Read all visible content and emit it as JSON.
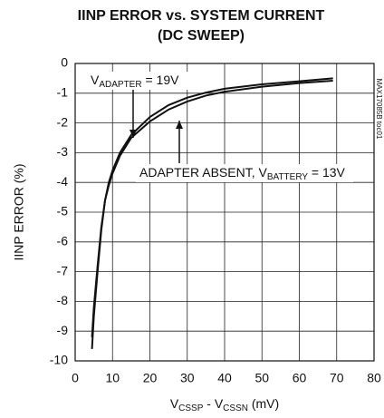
{
  "chart_data": {
    "type": "line",
    "title": "IINP ERROR vs. SYSTEM CURRENT",
    "subtitle": "(DC SWEEP)",
    "y_label": "IINP ERROR (%)",
    "x_label_parts": [
      "V",
      "CSSP",
      " - V",
      "CSSN",
      " (mV)"
    ],
    "figure_code": "MAX17085B toc01",
    "annotations": [
      {
        "parts": [
          "V",
          "ADAPTER",
          " = 19V"
        ]
      },
      {
        "parts": [
          "ADAPTER ABSENT, V",
          "BATTERY",
          " = 13V"
        ]
      }
    ],
    "x": [
      4.5,
      5,
      6,
      7,
      8,
      9,
      10,
      12,
      15,
      20,
      25,
      30,
      35,
      40,
      50,
      60,
      69
    ],
    "series": [
      {
        "color": "#111111",
        "values": [
          -9.6,
          -8.5,
          -7,
          -5.6,
          -4.6,
          -4.0,
          -3.6,
          -3.0,
          -2.4,
          -1.8,
          -1.4,
          -1.15,
          -0.98,
          -0.85,
          -0.7,
          -0.6,
          -0.5
        ]
      },
      {
        "color": "#111111",
        "values": [
          -9.2,
          -8.2,
          -6.8,
          -5.5,
          -4.6,
          -4.1,
          -3.7,
          -3.1,
          -2.5,
          -1.95,
          -1.55,
          -1.28,
          -1.08,
          -0.95,
          -0.78,
          -0.66,
          -0.58
        ]
      }
    ],
    "xlim": [
      0,
      80
    ],
    "xticks": [
      0,
      10,
      20,
      30,
      40,
      50,
      60,
      70,
      80
    ],
    "ylim": [
      -10,
      0
    ],
    "yticks": [
      -10,
      -9,
      -8,
      -7,
      -6,
      -5,
      -4,
      -3,
      -2,
      -1,
      0
    ],
    "grid": true
  }
}
